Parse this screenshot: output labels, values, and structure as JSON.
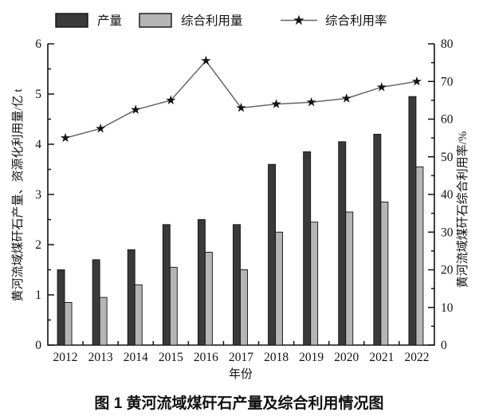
{
  "caption": "图 1  黄河流域煤矸石产量及综合利用情况图",
  "chart_data": {
    "type": "bar",
    "subtype": "grouped-bars-with-line-overlay",
    "title": "图 1  黄河流域煤矸石产量及综合利用情况图",
    "categories": [
      "2012",
      "2013",
      "2014",
      "2015",
      "2016",
      "2017",
      "2018",
      "2019",
      "2020",
      "2021",
      "2022"
    ],
    "series": [
      {
        "name": "产量",
        "type": "bar",
        "axis": "left",
        "color": "#3a3a3a",
        "values": [
          1.5,
          1.7,
          1.9,
          2.4,
          2.5,
          2.4,
          3.6,
          3.85,
          4.05,
          4.2,
          4.95
        ]
      },
      {
        "name": "综合利用量",
        "type": "bar",
        "axis": "left",
        "color": "#b5b5b5",
        "values": [
          0.85,
          0.95,
          1.2,
          1.55,
          1.85,
          1.5,
          2.25,
          2.45,
          2.65,
          2.85,
          3.55
        ]
      },
      {
        "name": "综合利用率",
        "type": "line",
        "axis": "right",
        "color": "#666666",
        "marker": "star",
        "marker_color": "#111111",
        "values": [
          55,
          57.5,
          62.5,
          65,
          75.5,
          63,
          64,
          64.5,
          65.5,
          68.5,
          70
        ]
      }
    ],
    "left_axis": {
      "label": "黄河流域煤矸石产量、资源化利用量/亿 t",
      "min": 0,
      "max": 6,
      "major_step": 1,
      "minor_step": 0.5
    },
    "right_axis": {
      "label": "黄河流域煤矸石综合利用率/%",
      "min": 0,
      "max": 80,
      "major_step": 10,
      "minor_step": 5
    },
    "x_axis": {
      "label": "年份"
    },
    "legend_position": "top",
    "grid": false,
    "axis_color": "#111111"
  }
}
